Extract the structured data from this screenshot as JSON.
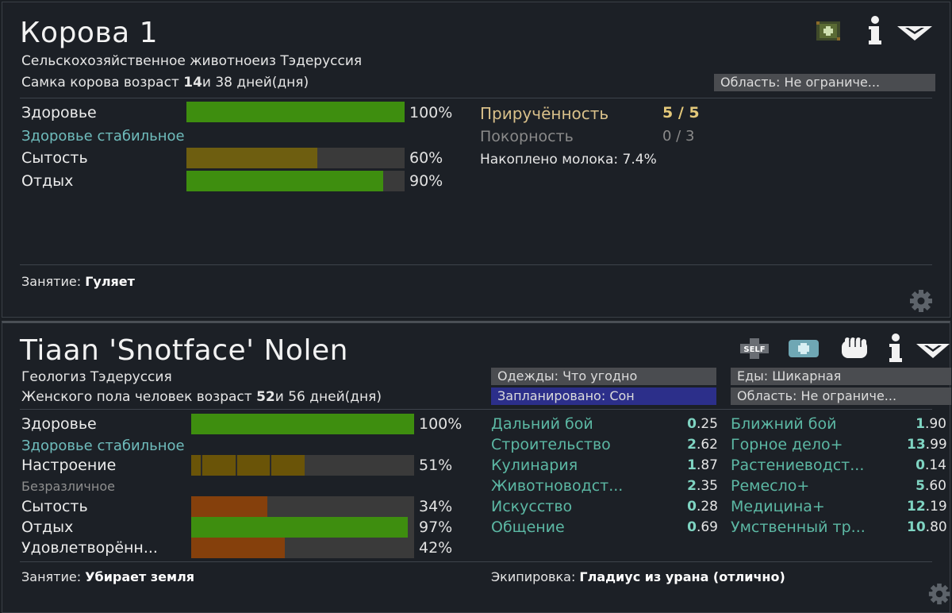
{
  "cow": {
    "name": "Корова 1",
    "desc_line1": "Сельскохозяйственное животноеиз Тэдеруссия",
    "desc_prefix": "Самка корова возраст ",
    "age_years": "14",
    "age_suffix": "и 38 дней(дня)",
    "area_button": "Область: Не ограниче...",
    "needs": [
      {
        "label": "Здоровье",
        "value": "100%",
        "level": 1.0
      },
      {
        "label": "Сытость",
        "value": "60%",
        "level": 0.6
      },
      {
        "label": "Отдых",
        "value": "90%",
        "level": 0.9
      }
    ],
    "health_state": "Здоровье стабильное",
    "tameness_label": "Приручённость",
    "tameness_value": "5 / 5",
    "obedience_label": "Покорность",
    "obedience_value": "0 / 3",
    "milk": "Накоплено молока: 7.4%",
    "activity_label": "Занятие: ",
    "activity_value": "Гуляет"
  },
  "colonist": {
    "name": "Tiaan 'Snotface' Nolen",
    "desc_line1": "Геологиз Тэдеруссия",
    "desc_prefix": "Женского пола человек возраст ",
    "age_years": "52",
    "age_suffix": "и 56 дней(дня)",
    "self_label": "SELF",
    "buttons": {
      "apparel": "Одежды: Что угодно",
      "food": "Еды: Шикарная",
      "schedule": "Запланировано: Сон",
      "area": "Область: Не ограниче..."
    },
    "needs": [
      {
        "label": "Здоровье",
        "value": "100%",
        "level": 1.0
      },
      {
        "label": "Настроение",
        "value": "51%",
        "level": 0.51
      },
      {
        "label": "Сытость",
        "value": "34%",
        "level": 0.34
      },
      {
        "label": "Отдых",
        "value": "97%",
        "level": 0.97
      },
      {
        "label": "Удовлетворённ...",
        "value": "42%",
        "level": 0.42
      }
    ],
    "health_state": "Здоровье стабильное",
    "mood_state": "Безразличное",
    "skills_left": [
      {
        "name": "Дальний бой",
        "int": "0",
        "frac": ".25"
      },
      {
        "name": "Строительство",
        "int": "2",
        "frac": ".62"
      },
      {
        "name": "Кулинария",
        "int": "1",
        "frac": ".87"
      },
      {
        "name": "Животноводст...",
        "int": "2",
        "frac": ".35"
      },
      {
        "name": "Искусство",
        "int": "0",
        "frac": ".28"
      },
      {
        "name": "Общение",
        "int": "0",
        "frac": ".69"
      }
    ],
    "skills_right": [
      {
        "name": "Ближний бой",
        "int": "1",
        "frac": ".90"
      },
      {
        "name": "Горное дело+",
        "int": "13",
        "frac": ".99"
      },
      {
        "name": "Растениеводст...",
        "int": "0",
        "frac": ".14"
      },
      {
        "name": "Ремесло+",
        "int": "5",
        "frac": ".60"
      },
      {
        "name": "Медицина+",
        "int": "12",
        "frac": ".19"
      },
      {
        "name": "Умственный тр...",
        "int": "10",
        "frac": ".80"
      }
    ],
    "activity_label": "Занятие: ",
    "activity_value": "Убирает земля",
    "equipment_label": "Экипировка: ",
    "equipment_value": "Гладиус из урана (отлично)"
  },
  "colors": {
    "health": "#3e8e0f",
    "food_cow": "#6e5e10",
    "food_colonist": "#85400c",
    "skill_text": "#5cb8a4",
    "schedule_button": "#2c2f8a"
  }
}
